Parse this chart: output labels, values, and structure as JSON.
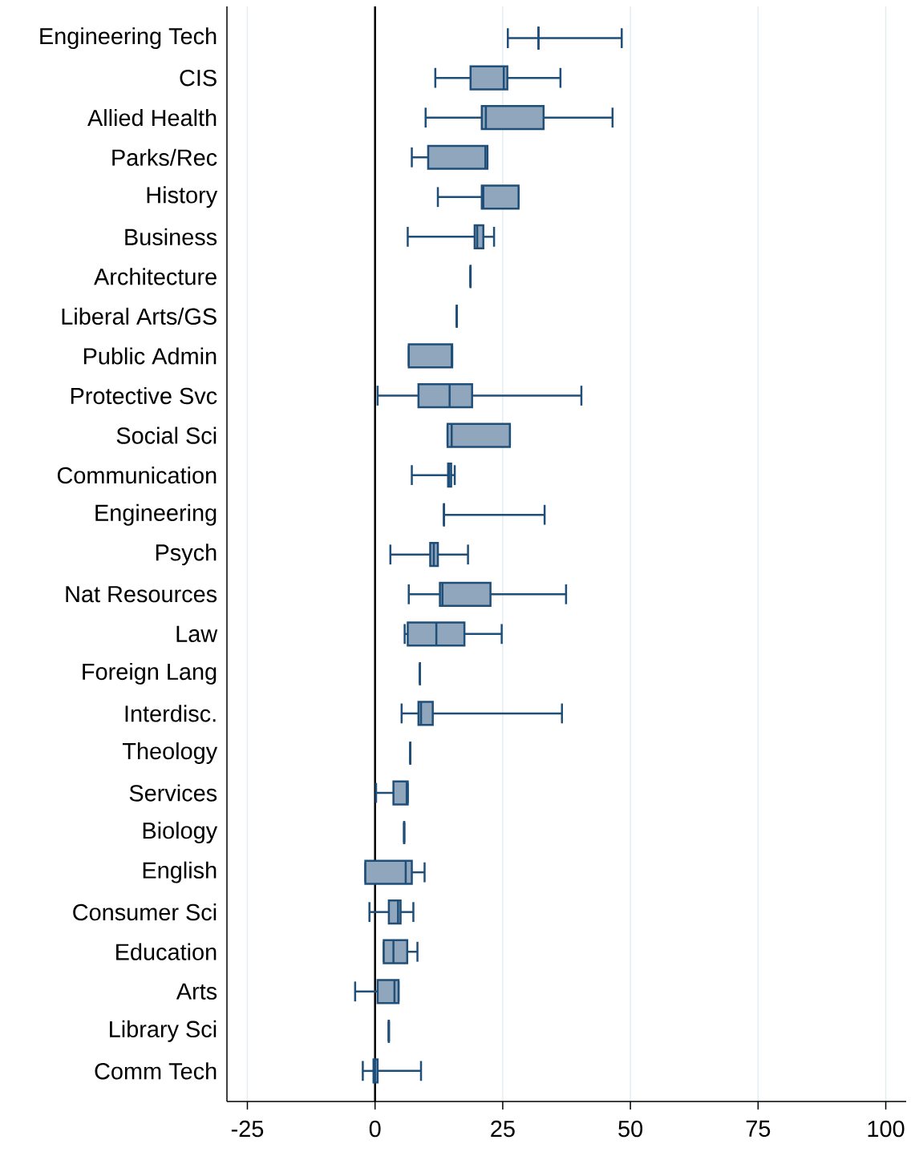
{
  "chart_data": {
    "type": "box",
    "orientation": "horizontal",
    "color": "#1f4e79",
    "categories": [
      "Engineering Tech",
      "CIS",
      "Allied Health",
      "Parks/Rec",
      "History",
      "Business",
      "Architecture",
      "Liberal Arts/GS",
      "Public Admin",
      "Protective Svc",
      "Social Sci",
      "Communication",
      "Engineering",
      "Psych",
      "Nat Resources",
      "Law",
      "Foreign Lang",
      "Interdisc.",
      "Theology",
      "Services",
      "Biology",
      "English",
      "Consumer Sci",
      "Education",
      "Arts",
      "Library Sci",
      "Comm Tech"
    ],
    "boxes": [
      {
        "low": 26,
        "q1": 32,
        "median": 32,
        "q3": 32,
        "high": 48.3
      },
      {
        "low": 11.8,
        "q1": 18.7,
        "median": 25.2,
        "q3": 25.9,
        "high": 36.3
      },
      {
        "low": 9.9,
        "q1": 20.9,
        "median": 21.7,
        "q3": 33,
        "high": 46.5
      },
      {
        "low": 7.2,
        "q1": 10.4,
        "median": 21.6,
        "q3": 22,
        "high": 22
      },
      {
        "low": 12.3,
        "q1": 20.9,
        "median": 21.2,
        "q3": 28.1,
        "high": 28.1
      },
      {
        "low": 6.4,
        "q1": 19.5,
        "median": 20,
        "q3": 21.2,
        "high": 23.3
      },
      {
        "low": 18.7,
        "q1": 18.7,
        "median": 18.7,
        "q3": 18.7,
        "high": 18.7
      },
      {
        "low": 16,
        "q1": 16,
        "median": 16,
        "q3": 16,
        "high": 16
      },
      {
        "low": 6.6,
        "q1": 6.6,
        "median": 15,
        "q3": 15.1,
        "high": 15.1
      },
      {
        "low": 0.5,
        "q1": 8.5,
        "median": 14.6,
        "q3": 19,
        "high": 40.4
      },
      {
        "low": 14.2,
        "q1": 14.2,
        "median": 15,
        "q3": 26.4,
        "high": 26.4
      },
      {
        "low": 7.2,
        "q1": 14.3,
        "median": 14.5,
        "q3": 14.9,
        "high": 15.6
      },
      {
        "low": 13.5,
        "q1": 13.5,
        "median": 13.5,
        "q3": 13.5,
        "high": 33.2
      },
      {
        "low": 3,
        "q1": 10.8,
        "median": 11.5,
        "q3": 12.3,
        "high": 18.2
      },
      {
        "low": 6.6,
        "q1": 12.7,
        "median": 13.2,
        "q3": 22.6,
        "high": 37.4
      },
      {
        "low": 5.8,
        "q1": 6.4,
        "median": 12,
        "q3": 17.5,
        "high": 24.8
      },
      {
        "low": 8.8,
        "q1": 8.8,
        "median": 8.8,
        "q3": 8.8,
        "high": 8.8
      },
      {
        "low": 5.2,
        "q1": 8.5,
        "median": 9,
        "q3": 11.3,
        "high": 36.6
      },
      {
        "low": 6.9,
        "q1": 6.9,
        "median": 6.9,
        "q3": 6.9,
        "high": 6.9
      },
      {
        "low": 0.2,
        "q1": 3.6,
        "median": 6.2,
        "q3": 6.4,
        "high": 6.4
      },
      {
        "low": 5.7,
        "q1": 5.7,
        "median": 5.7,
        "q3": 5.7,
        "high": 5.7
      },
      {
        "low": -1.9,
        "q1": -1.9,
        "median": 6,
        "q3": 7.2,
        "high": 9.7
      },
      {
        "low": -1.1,
        "q1": 2.7,
        "median": 4.5,
        "q3": 5,
        "high": 7.5
      },
      {
        "low": 1.7,
        "q1": 1.7,
        "median": 3.6,
        "q3": 6.3,
        "high": 8.3
      },
      {
        "low": -3.9,
        "q1": 0.5,
        "median": 3.8,
        "q3": 4.6,
        "high": 4.6
      },
      {
        "low": 2.7,
        "q1": 2.7,
        "median": 2.7,
        "q3": 2.7,
        "high": 2.7
      },
      {
        "low": -2.4,
        "q1": -0.3,
        "median": 0,
        "q3": 0.5,
        "high": 9
      }
    ],
    "xlim": [
      -29,
      104
    ],
    "xticks": [
      -25,
      0,
      25,
      50,
      75,
      100
    ],
    "grid": "x",
    "ref_lines": [
      {
        "axis": "x",
        "value": 0,
        "color": "#000000"
      }
    ]
  }
}
